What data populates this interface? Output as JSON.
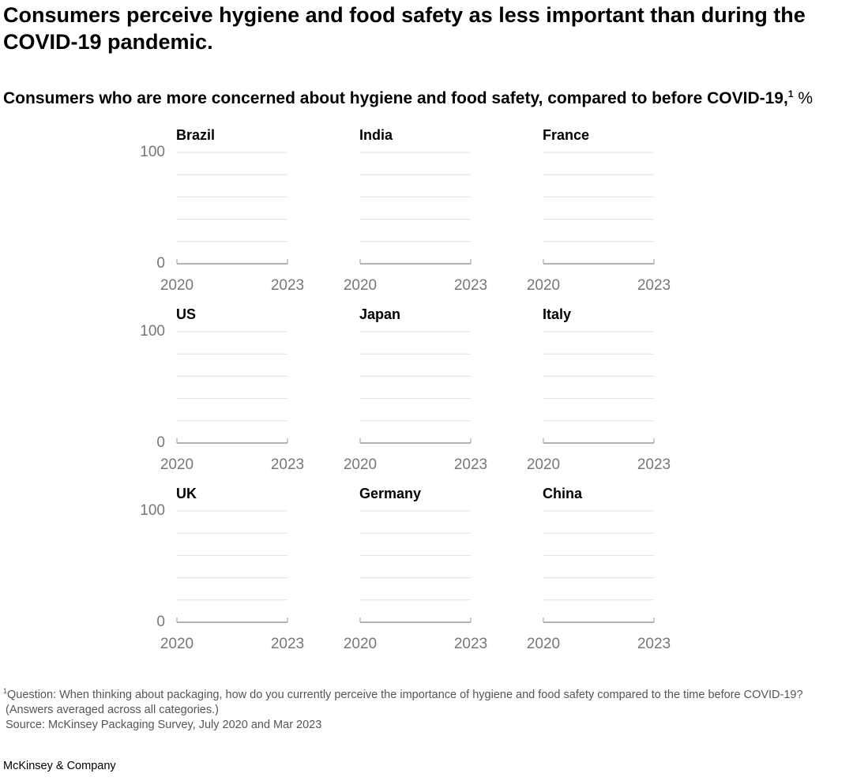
{
  "title": "Consumers perceive hygiene and food safety as less important than during the COVID-19 pandemic.",
  "subtitle": "Consumers who are more concerned about hygiene and food safety, compared to before COVID-19,",
  "subtitle_note": "1",
  "unit": "%",
  "footnote": "Question: When thinking about packaging, how do you currently perceive the importance of hygiene and food safety compared to the time before COVID-19?",
  "footnote_marker": "1",
  "footnote_cont": "(Answers averaged across all categories.)",
  "source": "Source: McKinsey Packaging Survey, July 2020 and Mar 2023",
  "brand": "McKinsey & Company",
  "chart_data": [
    {
      "type": "line",
      "title": "Brazil",
      "x": [
        "2020",
        "2023"
      ],
      "ylim": [
        0,
        100
      ],
      "yticks": [
        0,
        100
      ],
      "gridlines": [
        20,
        40,
        60,
        80,
        100
      ]
    },
    {
      "type": "line",
      "title": "India",
      "x": [
        "2020",
        "2023"
      ],
      "ylim": [
        0,
        100
      ],
      "gridlines": [
        20,
        40,
        60,
        80,
        100
      ]
    },
    {
      "type": "line",
      "title": "France",
      "x": [
        "2020",
        "2023"
      ],
      "ylim": [
        0,
        100
      ],
      "gridlines": [
        20,
        40,
        60,
        80,
        100
      ]
    },
    {
      "type": "line",
      "title": "US",
      "x": [
        "2020",
        "2023"
      ],
      "ylim": [
        0,
        100
      ],
      "yticks": [
        0,
        100
      ],
      "gridlines": [
        20,
        40,
        60,
        80,
        100
      ]
    },
    {
      "type": "line",
      "title": "Japan",
      "x": [
        "2020",
        "2023"
      ],
      "ylim": [
        0,
        100
      ],
      "gridlines": [
        20,
        40,
        60,
        80,
        100
      ]
    },
    {
      "type": "line",
      "title": "Italy",
      "x": [
        "2020",
        "2023"
      ],
      "ylim": [
        0,
        100
      ],
      "gridlines": [
        20,
        40,
        60,
        80,
        100
      ]
    },
    {
      "type": "line",
      "title": "UK",
      "x": [
        "2020",
        "2023"
      ],
      "ylim": [
        0,
        100
      ],
      "yticks": [
        0,
        100
      ],
      "gridlines": [
        20,
        40,
        60,
        80,
        100
      ]
    },
    {
      "type": "line",
      "title": "Germany",
      "x": [
        "2020",
        "2023"
      ],
      "ylim": [
        0,
        100
      ],
      "gridlines": [
        20,
        40,
        60,
        80,
        100
      ]
    },
    {
      "type": "line",
      "title": "China",
      "x": [
        "2020",
        "2023"
      ],
      "ylim": [
        0,
        100
      ],
      "gridlines": [
        20,
        40,
        60,
        80,
        100
      ]
    }
  ]
}
